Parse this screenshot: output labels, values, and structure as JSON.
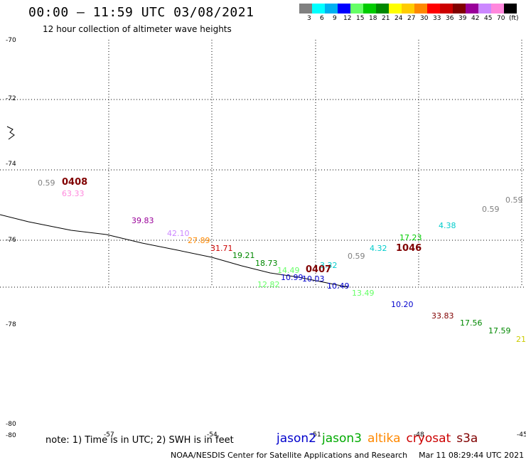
{
  "header": {
    "title": "00:00 – 11:59 UTC 03/08/2021",
    "subtitle": "12 hour collection of altimeter wave heights"
  },
  "legend": {
    "unit_label": "(ft)",
    "bins": [
      {
        "label": "3",
        "color": "#808080"
      },
      {
        "label": "6",
        "color": "#00ffff"
      },
      {
        "label": "9",
        "color": "#00b0f0"
      },
      {
        "label": "12",
        "color": "#0000ff"
      },
      {
        "label": "15",
        "color": "#66ff66"
      },
      {
        "label": "18",
        "color": "#00cc00"
      },
      {
        "label": "21",
        "color": "#008800"
      },
      {
        "label": "24",
        "color": "#ffff00"
      },
      {
        "label": "27",
        "color": "#ffcc00"
      },
      {
        "label": "30",
        "color": "#ff8800"
      },
      {
        "label": "33",
        "color": "#ff0000"
      },
      {
        "label": "36",
        "color": "#cc0000"
      },
      {
        "label": "39",
        "color": "#800000"
      },
      {
        "label": "42",
        "color": "#990099"
      },
      {
        "label": "45",
        "color": "#cc88ff"
      },
      {
        "label": "70",
        "color": "#ff88dd"
      },
      {
        "label": "",
        "color": "#000000"
      }
    ]
  },
  "axes": {
    "lat_labels": [
      "-70",
      "-72",
      "-74",
      "-76",
      "-78",
      "-80",
      "-80"
    ],
    "lon_labels": [
      "-57",
      "-54",
      "-51",
      "-48",
      "-45"
    ]
  },
  "observations": [
    {
      "value": "0.59",
      "color": "#808080"
    },
    {
      "value": "63.33",
      "color": "#ff88dd"
    },
    {
      "value": "39.83",
      "color": "#990099"
    },
    {
      "value": "42.10",
      "color": "#cc88ff"
    },
    {
      "value": "27.89",
      "color": "#ff8800"
    },
    {
      "value": "31.71",
      "color": "#cc0000"
    },
    {
      "value": "19.21",
      "color": "#008800"
    },
    {
      "value": "18.73",
      "color": "#008800"
    },
    {
      "value": "14.49",
      "color": "#66ff66"
    },
    {
      "value": "12.82",
      "color": "#66ff66"
    },
    {
      "value": "10.99",
      "color": "#0000cc"
    },
    {
      "value": "10.03",
      "color": "#0000cc"
    },
    {
      "value": "3.32",
      "color": "#00cccc"
    },
    {
      "value": "10.49",
      "color": "#0000cc"
    },
    {
      "value": "13.49",
      "color": "#66ff66"
    },
    {
      "value": "0.59",
      "color": "#808080"
    },
    {
      "value": "4.32",
      "color": "#00cccc"
    },
    {
      "value": "17.23",
      "color": "#00cc00"
    },
    {
      "value": "4.38",
      "color": "#00cccc"
    },
    {
      "value": "0.59",
      "color": "#808080"
    },
    {
      "value": "0.59",
      "color": "#808080"
    },
    {
      "value": "10.20",
      "color": "#0000cc"
    },
    {
      "value": "33.83",
      "color": "#800000"
    },
    {
      "value": "17.56",
      "color": "#008800"
    },
    {
      "value": "17.59",
      "color": "#008800"
    },
    {
      "value": "21",
      "color": "#cccc00"
    }
  ],
  "pass_times": [
    "0408",
    "0407",
    "1046"
  ],
  "footer": {
    "note": "note: 1) Time is in UTC; 2) SWH is in feet",
    "satellites": [
      {
        "name": "jason2",
        "color": "#0000cc"
      },
      {
        "name": "jason3",
        "color": "#00aa00"
      },
      {
        "name": "altika",
        "color": "#ff8800"
      },
      {
        "name": "cryosat",
        "color": "#cc0000"
      },
      {
        "name": "s3a",
        "color": "#800000"
      }
    ],
    "credit": "NOAA/NESDIS Center for Satellite Applications and Research",
    "timestamp": "Mar 11 08:29:44 UTC 2021"
  }
}
